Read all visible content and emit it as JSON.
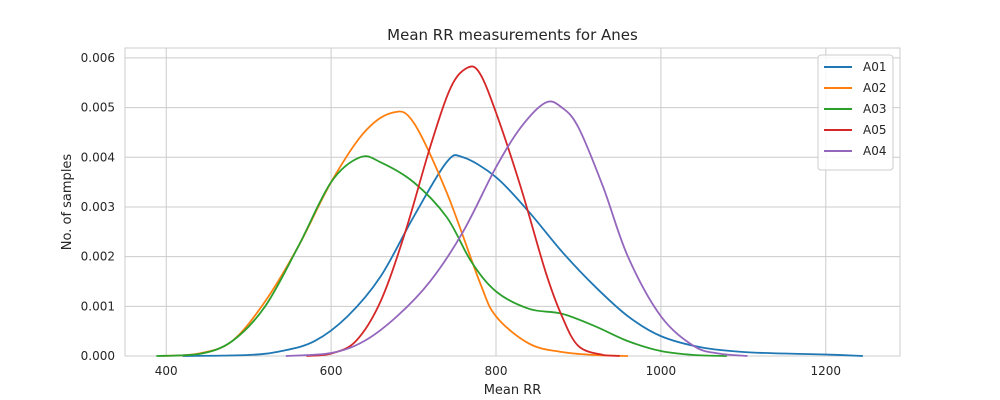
{
  "chart_data": {
    "type": "line",
    "title": "Mean RR measurements for Anes",
    "xlabel": "Mean RR",
    "ylabel": "No. of samples",
    "xlim": [
      350,
      1290
    ],
    "ylim": [
      0,
      0.0062
    ],
    "xticks": [
      400,
      600,
      800,
      1000,
      1200
    ],
    "xtick_labels": [
      "400",
      "600",
      "800",
      "1000",
      "1200"
    ],
    "yticks": [
      0,
      0.001,
      0.002,
      0.003,
      0.004,
      0.005,
      0.006
    ],
    "ytick_labels": [
      "0.000",
      "0.001",
      "0.002",
      "0.003",
      "0.004",
      "0.005",
      "0.006"
    ],
    "grid": true,
    "legend": "top-right",
    "series": [
      {
        "name": "A01",
        "color": "#1f77b4",
        "x": [
          420,
          500,
          540,
          580,
          620,
          660,
          700,
          740,
          760,
          800,
          840,
          880,
          920,
          960,
          1000,
          1050,
          1100,
          1150,
          1200,
          1245
        ],
        "y": [
          0.0,
          2e-05,
          0.0001,
          0.0003,
          0.0008,
          0.0016,
          0.0028,
          0.0039,
          0.004,
          0.0036,
          0.0029,
          0.0021,
          0.0014,
          0.0008,
          0.0004,
          0.00017,
          8e-05,
          5e-05,
          3e-05,
          0.0
        ]
      },
      {
        "name": "A02",
        "color": "#ff7f0e",
        "x": [
          395,
          440,
          480,
          520,
          560,
          600,
          640,
          675,
          700,
          740,
          780,
          800,
          840,
          880,
          920,
          960
        ],
        "y": [
          0.0,
          5e-05,
          0.0003,
          0.0011,
          0.0022,
          0.0035,
          0.0045,
          0.0049,
          0.0047,
          0.0033,
          0.0015,
          0.0008,
          0.00025,
          8e-05,
          2e-05,
          0.0
        ]
      },
      {
        "name": "A03",
        "color": "#2ca02c",
        "x": [
          388,
          440,
          480,
          520,
          560,
          600,
          635,
          660,
          700,
          740,
          770,
          800,
          840,
          880,
          920,
          960,
          1000,
          1040,
          1080
        ],
        "y": [
          0.0,
          4e-05,
          0.0003,
          0.001,
          0.0022,
          0.0035,
          0.004,
          0.0039,
          0.0035,
          0.0028,
          0.0019,
          0.0013,
          0.00095,
          0.00085,
          0.0006,
          0.0003,
          0.0001,
          2e-05,
          0.0
        ]
      },
      {
        "name": "A05",
        "color": "#d62728",
        "x": [
          570,
          600,
          630,
          660,
          690,
          720,
          745,
          765,
          780,
          800,
          830,
          860,
          880,
          900,
          930,
          950
        ],
        "y": [
          0.0,
          5e-05,
          0.0003,
          0.0011,
          0.0025,
          0.0042,
          0.0054,
          0.0058,
          0.0057,
          0.0049,
          0.0034,
          0.0017,
          0.0008,
          0.0002,
          2e-05,
          0.0
        ]
      },
      {
        "name": "A04",
        "color": "#9467bd",
        "x": [
          545,
          600,
          640,
          680,
          720,
          760,
          800,
          830,
          860,
          880,
          900,
          930,
          960,
          1000,
          1040,
          1070,
          1105
        ],
        "y": [
          0.0,
          6e-05,
          0.0003,
          0.0008,
          0.0015,
          0.0025,
          0.0038,
          0.0046,
          0.0051,
          0.005,
          0.0046,
          0.0034,
          0.002,
          0.0008,
          0.0002,
          5e-05,
          0.0
        ]
      }
    ]
  }
}
